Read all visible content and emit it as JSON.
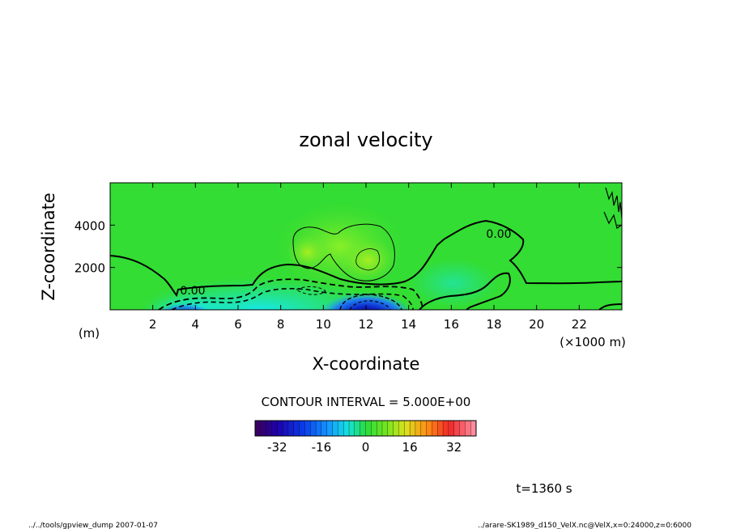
{
  "chart_data": {
    "type": "heatmap",
    "title": "zonal velocity",
    "xlabel": "X-coordinate",
    "ylabel": "Z-coordinate",
    "x_unit": "(×1000 m)",
    "y_unit": "(m)",
    "x_ticks": [
      2,
      4,
      6,
      8,
      10,
      12,
      14,
      16,
      18,
      20,
      22
    ],
    "y_ticks": [
      2000,
      4000
    ],
    "xlim": [
      0,
      24
    ],
    "ylim": [
      0,
      6000
    ],
    "contour_label": "0.00",
    "contour_interval_text": "CONTOUR INTERVAL = 5.000E+00",
    "colorbar": {
      "ticks": [
        -32,
        -16,
        0,
        16,
        32
      ],
      "range": [
        -40,
        40
      ],
      "levels": 40
    },
    "time_text": "t=1360 s",
    "footer_left": "../../tools/gpview_dump  2007-01-07",
    "footer_right": "../arare-SK1989_d150_VelX.nc@VelX,x=0:24000,z=0:6000",
    "grid": false,
    "colors": {
      "background": "#ffffff",
      "field_base": "#33dd33",
      "contour": "#000000"
    }
  }
}
